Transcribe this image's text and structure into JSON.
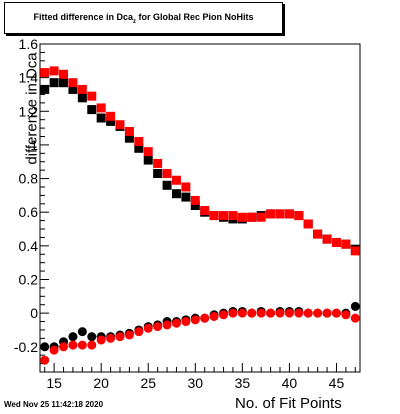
{
  "title": {
    "text_before": "Fitted difference in Dca",
    "subscript": "z",
    "text_after": " for Global Rec Pion NoHits"
  },
  "footer_date": "Wed Nov 25 11:42:18 2020",
  "colors": {
    "series_black": "#000000",
    "series_red": "#ff0000",
    "axis": "#000000"
  },
  "chart_data": {
    "type": "scatter",
    "xlabel": "No. of Fit Points",
    "ylabel": "difference in Dca",
    "xlim": [
      13.5,
      47.5
    ],
    "ylim": [
      -0.35,
      1.6
    ],
    "x_ticks": [
      15,
      20,
      25,
      30,
      35,
      40,
      45
    ],
    "y_ticks": [
      -0.2,
      0,
      0.2,
      0.4,
      0.6,
      0.8,
      1,
      1.2,
      1.4,
      1.6
    ],
    "y_tick_labels": [
      "-0.2",
      "0",
      "0.2",
      "0.4",
      "0.6",
      "0.8",
      "1",
      "1.2",
      "1.4",
      "1.6"
    ],
    "x": [
      14,
      15,
      16,
      17,
      18,
      19,
      20,
      21,
      22,
      23,
      24,
      25,
      26,
      27,
      28,
      29,
      30,
      31,
      32,
      33,
      34,
      35,
      36,
      37,
      38,
      39,
      40,
      41,
      42,
      43,
      44,
      45,
      46,
      47
    ],
    "series": [
      {
        "marker": "square",
        "color": "#000000",
        "values": [
          1.33,
          1.37,
          1.37,
          1.33,
          1.28,
          1.21,
          1.16,
          1.14,
          1.11,
          1.04,
          0.98,
          0.91,
          0.83,
          0.76,
          0.71,
          0.69,
          0.64,
          0.6,
          0.58,
          0.57,
          0.56,
          0.56,
          0.57,
          0.58,
          0.59,
          0.59,
          0.59,
          0.58,
          0.53,
          0.47,
          0.44,
          0.42,
          0.41,
          0.38
        ]
      },
      {
        "marker": "square",
        "color": "#ff0000",
        "values": [
          1.43,
          1.44,
          1.42,
          1.37,
          1.33,
          1.29,
          1.22,
          1.17,
          1.12,
          1.08,
          1.02,
          0.96,
          0.89,
          0.83,
          0.79,
          0.75,
          0.67,
          0.61,
          0.58,
          0.58,
          0.58,
          0.57,
          0.57,
          0.57,
          0.59,
          0.59,
          0.59,
          0.58,
          0.53,
          0.47,
          0.44,
          0.42,
          0.41,
          0.37
        ]
      },
      {
        "marker": "circle",
        "color": "#000000",
        "values": [
          -0.2,
          -0.2,
          -0.17,
          -0.14,
          -0.11,
          -0.14,
          -0.14,
          -0.14,
          -0.13,
          -0.12,
          -0.1,
          -0.08,
          -0.07,
          -0.05,
          -0.05,
          -0.04,
          -0.03,
          -0.03,
          -0.01,
          0.0,
          0.01,
          0.01,
          0.0,
          0.01,
          0.0,
          0.01,
          0.01,
          0.01,
          0.0,
          0.0,
          0.0,
          0.0,
          0.0,
          0.04
        ]
      },
      {
        "marker": "circle",
        "color": "#ff0000",
        "values": [
          -0.28,
          -0.22,
          -0.2,
          -0.19,
          -0.19,
          -0.19,
          -0.16,
          -0.15,
          -0.14,
          -0.13,
          -0.11,
          -0.09,
          -0.08,
          -0.07,
          -0.06,
          -0.05,
          -0.04,
          -0.03,
          -0.02,
          -0.01,
          0.0,
          0.0,
          0.0,
          0.0,
          0.0,
          0.0,
          0.0,
          0.0,
          0.0,
          0.0,
          0.0,
          0.0,
          -0.01,
          -0.03
        ]
      }
    ]
  }
}
